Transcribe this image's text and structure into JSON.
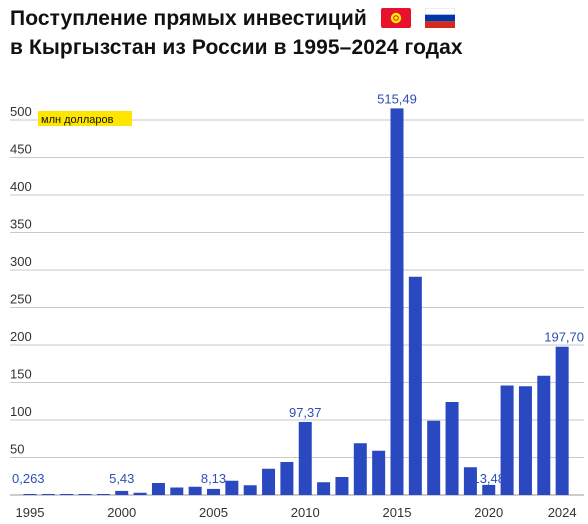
{
  "title": {
    "line1": "Поступление прямых инвестиций",
    "line2": "в Кыргызстан из России в 1995–2024 годах"
  },
  "icons": {
    "flag1": "kyrgyzstan-flag-icon",
    "flag2": "russia-flag-icon"
  },
  "colors": {
    "bar": "#2a48c0",
    "value_label": "#2d4fb8",
    "unit_highlight": "#ffe600",
    "flag_kg_red": "#e8112d",
    "flag_kg_sun": "#ffef00",
    "flag_ru_blue": "#0039a6",
    "flag_ru_red": "#d52b1e"
  },
  "chart_data": {
    "type": "bar",
    "unit_label": "млн долларов",
    "x": [
      1995,
      1996,
      1997,
      1998,
      1999,
      2000,
      2001,
      2002,
      2003,
      2004,
      2005,
      2006,
      2007,
      2008,
      2009,
      2010,
      2011,
      2012,
      2013,
      2014,
      2015,
      2016,
      2017,
      2018,
      2019,
      2020,
      2021,
      2022,
      2023,
      2024
    ],
    "values": [
      0.263,
      0.4,
      0.5,
      0.6,
      0.8,
      5.43,
      3.0,
      16,
      10,
      11,
      8.13,
      19,
      13,
      35,
      44,
      97.37,
      17,
      24,
      69,
      59,
      515.49,
      291,
      99,
      124,
      37,
      13.48,
      146,
      145,
      159,
      197.7
    ],
    "x_tick_labels": [
      "1995",
      "2000",
      "2005",
      "2010",
      "2015",
      "2020",
      "2024"
    ],
    "y_ticks": [
      50,
      100,
      150,
      200,
      250,
      300,
      350,
      400,
      450,
      500
    ],
    "ylim": [
      0,
      530
    ],
    "annotations": [
      {
        "x": 1995,
        "text": "0,263"
      },
      {
        "x": 2000,
        "text": "5,43"
      },
      {
        "x": 2005,
        "text": "8,13"
      },
      {
        "x": 2010,
        "text": "97,37"
      },
      {
        "x": 2015,
        "text": "515,49"
      },
      {
        "x": 2020,
        "text": "13,48"
      },
      {
        "x": 2024,
        "text": "197,70"
      }
    ],
    "grid": true,
    "legend": "none"
  }
}
